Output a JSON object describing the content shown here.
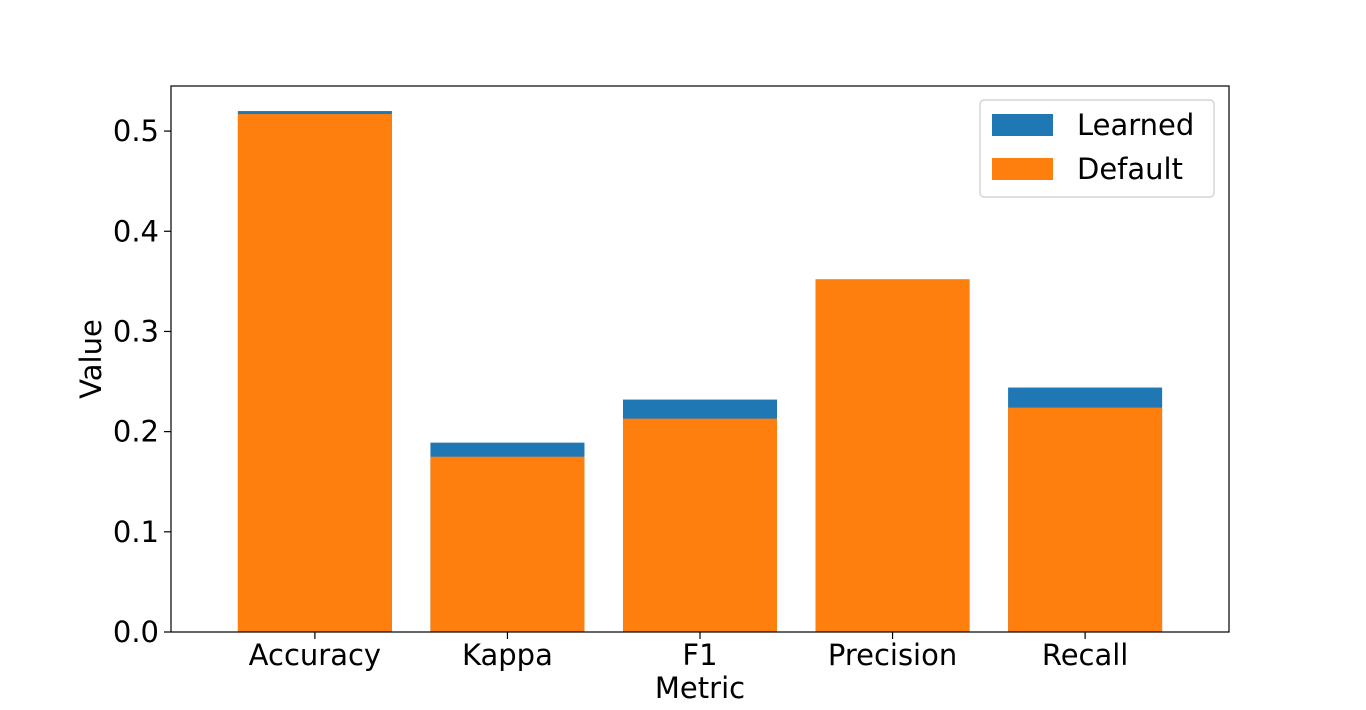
{
  "chart_data": {
    "type": "bar",
    "xlabel": "Metric",
    "ylabel": "Value",
    "categories": [
      "Accuracy",
      "Kappa",
      "F1",
      "Precision",
      "Recall"
    ],
    "series": [
      {
        "name": "Learned",
        "color": "#1f77b4",
        "values": [
          0.52,
          0.189,
          0.232,
          0.352,
          0.244
        ]
      },
      {
        "name": "Default",
        "color": "#ff7f0e",
        "values": [
          0.517,
          0.175,
          0.213,
          0.352,
          0.224
        ]
      }
    ],
    "overlay": true,
    "ylim": [
      0,
      0.545
    ],
    "yticks": [
      0.0,
      0.1,
      0.2,
      0.3,
      0.4,
      0.5
    ],
    "ytick_labels": [
      "0.0",
      "0.1",
      "0.2",
      "0.3",
      "0.4",
      "0.5"
    ],
    "grid": false,
    "legend_position": "top-right"
  }
}
